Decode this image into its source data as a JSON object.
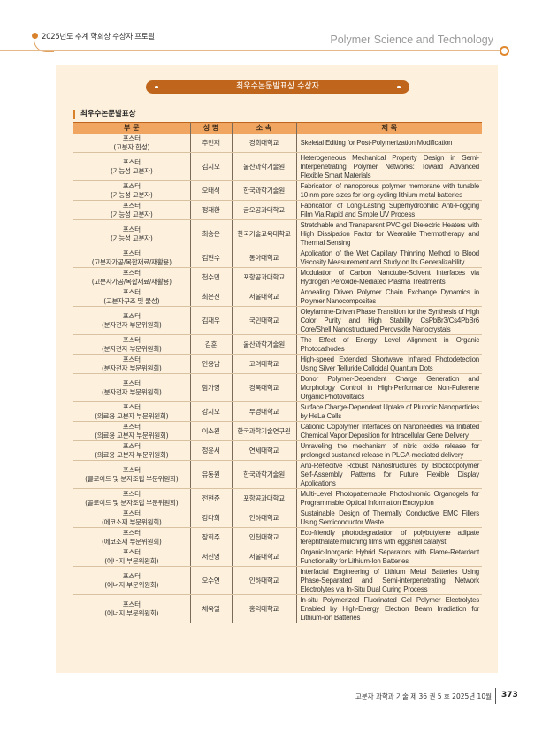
{
  "header": {
    "section": "2025년도 추계 학회상 수상자 프로필",
    "journal": "Polymer Science and Technology"
  },
  "banner": "최우수논문발표상 수상자",
  "section_label": "최우수논문발표상",
  "table": {
    "headers": [
      "부 문",
      "성 명",
      "소 속",
      "제 목"
    ],
    "rows": [
      {
        "cat": "포스터",
        "sub": "(고분자 합성)",
        "name": "추민재",
        "aff": "경희대학교",
        "title": "Skeletal Editing for Post-Polymerization Modification"
      },
      {
        "cat": "포스터",
        "sub": "(기능성 고분자)",
        "name": "김지오",
        "aff": "울산과학기술원",
        "title": "Heterogeneous Mechanical Property Design in Semi-Interpenetrating Polymer Networks: Toward Advanced Flexible Smart Materials"
      },
      {
        "cat": "포스터",
        "sub": "(기능성 고분자)",
        "name": "오태석",
        "aff": "한국과학기술원",
        "title": "Fabrication of nanoporous polymer membrane with tunable 10-nm pore sizes for long-cycling lithium metal batteries"
      },
      {
        "cat": "포스터",
        "sub": "(기능성 고분자)",
        "name": "정재환",
        "aff": "금오공과대학교",
        "title": "Fabrication of Long-Lasting Superhydrophilic Anti-Fogging Film Via Rapid and Simple UV Process"
      },
      {
        "cat": "포스터",
        "sub": "(기능성 고분자)",
        "name": "최승은",
        "aff": "한국기술교육대학교",
        "title": "Stretchable and Transparent PVC-gel Dielectric Heaters with High Dissipation Factor for Wearable Thermotherapy and Thermal Sensing"
      },
      {
        "cat": "포스터",
        "sub": "(고분자가공/복합재료/재활용)",
        "name": "김현수",
        "aff": "동아대학교",
        "title": "Application of the Wet Capillary Thinning Method to Blood Viscosity Measurement and Study on Its Generalizability"
      },
      {
        "cat": "포스터",
        "sub": "(고분자가공/복합재료/재활용)",
        "name": "천수민",
        "aff": "포항공과대학교",
        "title": "Modulation of Carbon Nanotube-Solvent Interfaces via Hydrogen Peroxide-Mediated Plasma Treatments"
      },
      {
        "cat": "포스터",
        "sub": "(고분자구조 및 물성)",
        "name": "최은진",
        "aff": "서울대학교",
        "title": "Annealing Driven Polymer Chain Exchange Dynamics in Polymer Nanocomposites"
      },
      {
        "cat": "포스터",
        "sub": "(분자전자 부문위원회)",
        "name": "김재우",
        "aff": "국민대학교",
        "title": "Oleylamine-Driven Phase Transition for the Synthesis of High Color Purity and High Stability CsPbBr3/Cs4PbBr6 Core/Shell Nanostructured Perovskite Nanocrystals"
      },
      {
        "cat": "포스터",
        "sub": "(분자전자 부문위원회)",
        "name": "김훈",
        "aff": "울산과학기술원",
        "title": "The Effect of Energy Level Alignment in Organic Photocathodes"
      },
      {
        "cat": "포스터",
        "sub": "(분자전자 부문위원회)",
        "name": "안용남",
        "aff": "고려대학교",
        "title": "High-speed Extended Shortwave Infrared Photodetection Using Silver Telluride Colloidal Quantum Dots"
      },
      {
        "cat": "포스터",
        "sub": "(분자전자 부문위원회)",
        "name": "함가영",
        "aff": "경북대학교",
        "title": "Donor Polymer-Dependent Charge Generation and Morphology Control in High-Performance Non-Fullerene Organic Photovoltaics"
      },
      {
        "cat": "포스터",
        "sub": "(의료용 고분자 부문위원회)",
        "name": "강지오",
        "aff": "부경대학교",
        "title": "Surface Charge-Dependent Uptake of Pluronic Nanoparticles by HeLa Cells"
      },
      {
        "cat": "포스터",
        "sub": "(의료용 고분자 부문위원회)",
        "name": "이소원",
        "aff": "한국과학기술연구원",
        "title": "Cationic Copolymer Interfaces on Nanoneedles via Initiated Chemical Vapor Deposition for Intracellular Gene Delivery"
      },
      {
        "cat": "포스터",
        "sub": "(의료용 고분자 부문위원회)",
        "name": "정윤서",
        "aff": "연세대학교",
        "title": "Unraveling the mechanism of nitric oxide release for prolonged sustained release in PLGA-mediated delivery"
      },
      {
        "cat": "포스터",
        "sub": "(콜로이드 및 분자조립 부문위원회)",
        "name": "유동원",
        "aff": "한국과학기술원",
        "title": "Anti-Reflecitve Robust Nanostructures by Blockcopolymer Self-Assembly Patterns for Future Flexible Display Applications"
      },
      {
        "cat": "포스터",
        "sub": "(콜로이드 및 분자조립 부문위원회)",
        "name": "전현준",
        "aff": "포항공과대학교",
        "title": "Multi-Level Photopatternable Photochromic Organogels for Programmable Optical Information Encryption"
      },
      {
        "cat": "포스터",
        "sub": "(에코소재 부문위원회)",
        "name": "강다희",
        "aff": "인하대학교",
        "title": "Sustainable Design of Thermally Conductive EMC Fillers Using Semiconductor Waste"
      },
      {
        "cat": "포스터",
        "sub": "(에코소재 부문위원회)",
        "name": "장희주",
        "aff": "인천대학교",
        "title": "Eco-friendly photodegradation of polybutylene adipate terephthalate mulching films with eggshell catalyst"
      },
      {
        "cat": "포스터",
        "sub": "(에너지 부문위원회)",
        "name": "서신영",
        "aff": "서울대학교",
        "title": "Organic-Inorganic Hybrid Separators with Flame-Retardant Functionality for Lithium-Ion Batteries"
      },
      {
        "cat": "포스터",
        "sub": "(에너지 부문위원회)",
        "name": "오수연",
        "aff": "인하대학교",
        "title": "Interfacial Engineering of Lithium Metal Batteries Using Phase-Separated and Semi-interpenetrating Network Electrolytes via In-Situ Dual Curing Process"
      },
      {
        "cat": "포스터",
        "sub": "(에너지 부문위원회)",
        "name": "채욱일",
        "aff": "홍익대학교",
        "title": "In-situ Polymerized Fluorinated Gel Polymer Electrolytes Enabled by High-Energy Electron Beam Irradiation for Lithium-ion Batteries"
      }
    ]
  },
  "footer": {
    "journal_issue": "고분자 과학과 기술 제 36 권 5 호 2025년 10월",
    "page": "373"
  },
  "colors": {
    "accent": "#c0661c",
    "header_row": "#f0a560",
    "panel": "#fdf0dc"
  }
}
